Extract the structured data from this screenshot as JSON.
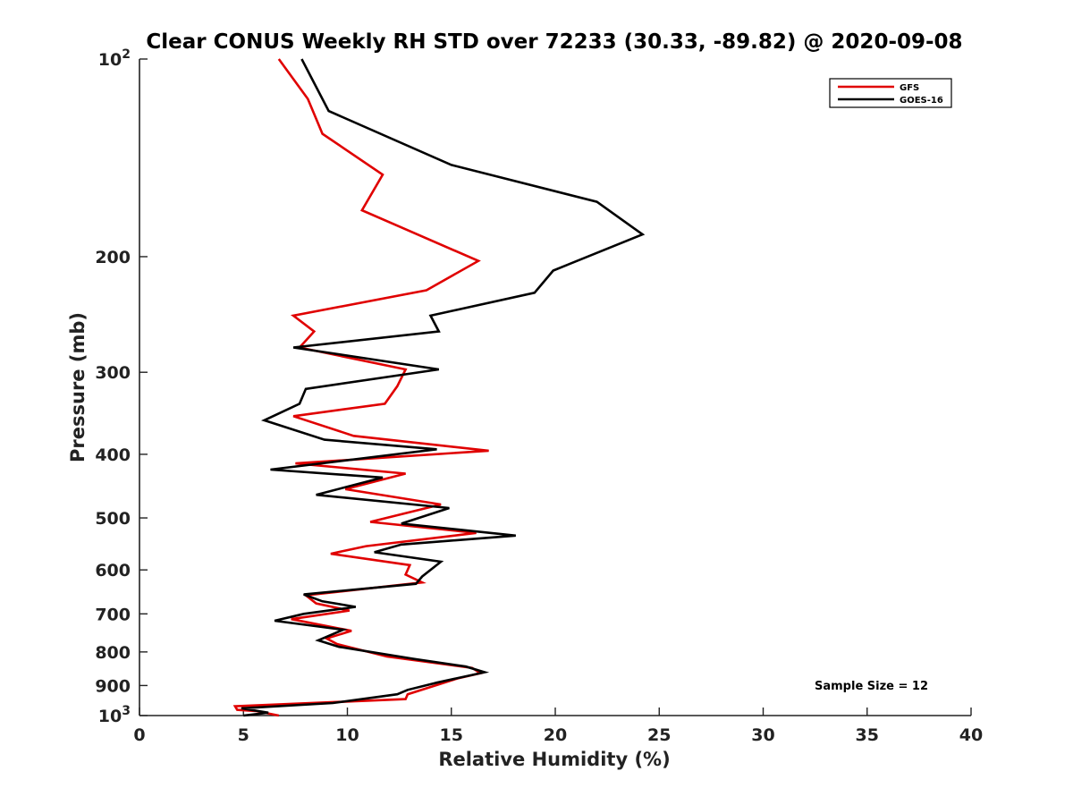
{
  "chart_data": {
    "type": "line",
    "title": "Clear CONUS Weekly RH STD over 72233 (30.33, -89.82) @ 2020-09-08",
    "xlabel": "Relative Humidity (%)",
    "ylabel": "Pressure (mb)",
    "xlim": [
      0,
      40
    ],
    "ylim": [
      100,
      1000
    ],
    "y_scale": "log",
    "y_reversed": true,
    "grid": false,
    "legend_position": "top-right",
    "x_ticks": [
      "0",
      "5",
      "10",
      "15",
      "20",
      "25",
      "30",
      "35",
      "40"
    ],
    "y_ticks": [
      {
        "value": 100,
        "base": "10",
        "exp": "2"
      },
      {
        "value": 200,
        "label": "200"
      },
      {
        "value": 300,
        "label": "300"
      },
      {
        "value": 400,
        "label": "400"
      },
      {
        "value": 500,
        "label": "500"
      },
      {
        "value": 600,
        "label": "600"
      },
      {
        "value": 700,
        "label": "700"
      },
      {
        "value": 800,
        "label": "800"
      },
      {
        "value": 900,
        "label": "900"
      },
      {
        "value": 1000,
        "base": "10",
        "exp": "3"
      }
    ],
    "annotation": "Sample Size = 12",
    "series": [
      {
        "name": "GFS",
        "color": "#e00000",
        "points": [
          [
            6.7,
            100
          ],
          [
            8.1,
            115
          ],
          [
            8.8,
            130
          ],
          [
            11.7,
            150
          ],
          [
            10.7,
            170
          ],
          [
            16.3,
            203
          ],
          [
            13.8,
            225
          ],
          [
            7.4,
            246
          ],
          [
            8.4,
            260
          ],
          [
            7.7,
            275
          ],
          [
            12.8,
            297
          ],
          [
            12.4,
            315
          ],
          [
            11.8,
            335
          ],
          [
            7.4,
            350
          ],
          [
            10.3,
            375
          ],
          [
            16.8,
            395
          ],
          [
            7.5,
            413
          ],
          [
            12.8,
            428
          ],
          [
            9.9,
            452
          ],
          [
            14.5,
            477
          ],
          [
            11.1,
            507
          ],
          [
            16.2,
            527
          ],
          [
            10.9,
            552
          ],
          [
            9.2,
            567
          ],
          [
            13.0,
            590
          ],
          [
            12.8,
            610
          ],
          [
            13.6,
            627
          ],
          [
            8.0,
            656
          ],
          [
            8.5,
            675
          ],
          [
            10.1,
            692
          ],
          [
            7.3,
            713
          ],
          [
            10.2,
            743
          ],
          [
            9.0,
            763
          ],
          [
            9.5,
            778
          ],
          [
            11.9,
            813
          ],
          [
            16.0,
            846
          ],
          [
            16.4,
            862
          ],
          [
            15.3,
            878
          ],
          [
            12.9,
            928
          ],
          [
            12.8,
            944
          ],
          [
            4.6,
            968
          ],
          [
            4.7,
            980
          ],
          [
            5.6,
            984
          ],
          [
            6.7,
            1000
          ]
        ]
      },
      {
        "name": "GOES-16",
        "color": "#000000",
        "points": [
          [
            7.8,
            100
          ],
          [
            9.1,
            120
          ],
          [
            15.0,
            145
          ],
          [
            22.0,
            165
          ],
          [
            24.2,
            185
          ],
          [
            19.9,
            210
          ],
          [
            19.0,
            227
          ],
          [
            14.0,
            246
          ],
          [
            14.4,
            260
          ],
          [
            7.4,
            275
          ],
          [
            14.4,
            297
          ],
          [
            8.0,
            318
          ],
          [
            7.7,
            335
          ],
          [
            6.0,
            355
          ],
          [
            8.9,
            380
          ],
          [
            14.3,
            393
          ],
          [
            6.3,
            422
          ],
          [
            11.7,
            434
          ],
          [
            8.5,
            461
          ],
          [
            14.9,
            483
          ],
          [
            12.6,
            510
          ],
          [
            18.1,
            532
          ],
          [
            12.6,
            549
          ],
          [
            11.3,
            564
          ],
          [
            14.5,
            583
          ],
          [
            13.6,
            614
          ],
          [
            13.3,
            630
          ],
          [
            7.9,
            654
          ],
          [
            8.8,
            670
          ],
          [
            10.4,
            683
          ],
          [
            7.9,
            700
          ],
          [
            6.5,
            717
          ],
          [
            9.8,
            740
          ],
          [
            8.6,
            768
          ],
          [
            9.6,
            786
          ],
          [
            13.2,
            820
          ],
          [
            15.7,
            842
          ],
          [
            16.6,
            859
          ],
          [
            14.3,
            891
          ],
          [
            12.9,
            914
          ],
          [
            12.4,
            928
          ],
          [
            9.3,
            957
          ],
          [
            4.9,
            975
          ],
          [
            6.2,
            990
          ],
          [
            5.0,
            1000
          ]
        ]
      }
    ]
  }
}
